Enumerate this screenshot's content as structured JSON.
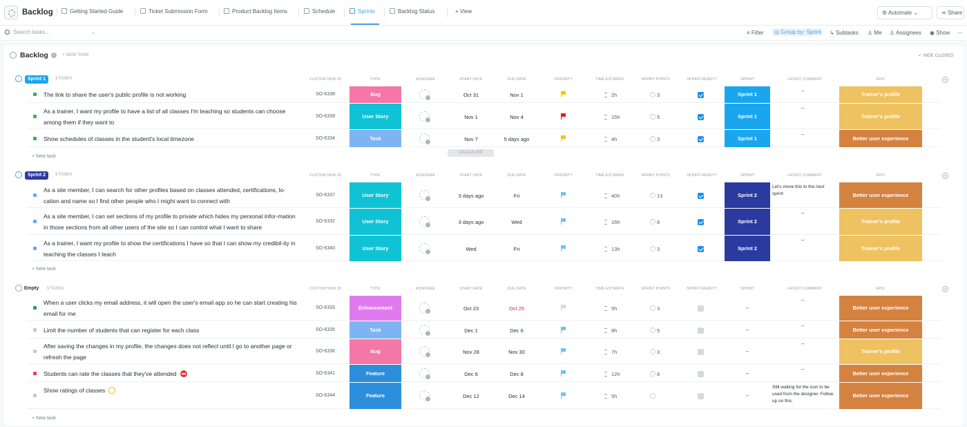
{
  "app": {
    "title": "Backlog"
  },
  "tabs": [
    {
      "label": "Getting Started Guide"
    },
    {
      "label": "Ticket Submission Form"
    },
    {
      "label": "Product Backlog Items"
    },
    {
      "label": "Schedule"
    },
    {
      "label": "Sprints",
      "active": true
    },
    {
      "label": "Backlog Status"
    }
  ],
  "view_label": "+ View",
  "topbar": {
    "automate_label": "Automate",
    "share_label": "Share"
  },
  "toolbar": {
    "search_placeholder": "Search tasks...",
    "filter_label": "Filter",
    "groupby_label": "Group by: Sprint",
    "subtasks_label": "Subtasks",
    "me_label": "Me",
    "assignees_label": "Assignees",
    "show_label": "Show",
    "more_label": "⋯"
  },
  "list": {
    "title": "Backlog",
    "new_task_label": "+ NEW TASK",
    "hide_closed_label": "HIDE CLOSED"
  },
  "columns": {
    "custom_task_id": "CUSTOM TASK ID",
    "type": "TYPE",
    "assignee": "ASSIGNEE",
    "start_date": "START DATE",
    "due_date": "DUE DATE",
    "priority": "PRIORITY",
    "time_estimate": "TIME ESTIMATE",
    "sprint_points": "SPRINT POINTS",
    "sprint_ready": "SPRINT-READY?",
    "sprint": "SPRINT",
    "latest_comment": "LATEST COMMENT",
    "epic": "EPIC"
  },
  "calculate_label": "CALCULATE",
  "new_task_row_label": "+ New task",
  "colors": {
    "bug": "#f477a8",
    "user_story": "#0fc3d5",
    "task": "#7fb4f2",
    "enhancement": "#df7bef",
    "feature": "#2d8fdc",
    "sprint1": "#1aa6ee",
    "sprint2": "#2b3a9f",
    "epic_trainer": "#eec260",
    "epic_better": "#d4823f",
    "flag_yellow": "#f5c400",
    "flag_red": "#e01e1e",
    "flag_blue": "#6fc3ee",
    "flag_grey": "#d5d8dc"
  },
  "groups": [
    {
      "name": "Sprint 1",
      "count_label": "3 TASKS",
      "color": "#1aa6ee",
      "tasks": [
        {
          "name": "The link to share the user's public profile is not working",
          "id": "SO-6338",
          "type": "Bug",
          "start": "Oct 31",
          "due": "Nov 1",
          "priority": "yellow",
          "time": "2h",
          "points": "3",
          "ready": true,
          "sprint": "Sprint 1",
          "comment": "–",
          "epic": "Trainer's profile",
          "status_color": "#2fb84a"
        },
        {
          "name": "As a trainer, I want my profile to have a list of all classes I'm teaching so students can choose among them if they want to",
          "id": "SO-6339",
          "type": "User Story",
          "start": "Nov 1",
          "due": "Nov 4",
          "priority": "red",
          "time": "15h",
          "points": "5",
          "ready": true,
          "sprint": "Sprint 1",
          "comment": "–",
          "epic": "Trainer's profile",
          "status_color": "#2fb84a"
        },
        {
          "name": "Show schedules of classes in the student's local timezone",
          "id": "SO-6334",
          "type": "Task",
          "start": "Nov 7",
          "due": "5 days ago",
          "priority": "yellow",
          "time": "4h",
          "points": "3",
          "ready": true,
          "sprint": "Sprint 1",
          "comment": "–",
          "epic": "Better user experience",
          "status_color": "#2fb84a"
        }
      ]
    },
    {
      "name": "Sprint 2",
      "count_label": "3 TASKS",
      "color": "#2b3a9f",
      "tasks": [
        {
          "name": "As a site member, I can search for other profiles based on classes attended, certifications, lo-cation and name so I find other people who I might want to connect with",
          "id": "SO-6337",
          "type": "User Story",
          "start": "3 days ago",
          "due": "Fri",
          "priority": "blue",
          "time": "40h",
          "points": "13",
          "ready": true,
          "sprint": "Sprint 2",
          "comment": "Let's move this to the next sprint",
          "epic": "Better user experience",
          "status_color": "#6fa7ef"
        },
        {
          "name": "As a site member, I can set sections of my profile to private which hides my personal infor-mation in those sections from all other users of the site so I can control what I want to share",
          "id": "SO-6332",
          "type": "User Story",
          "start": "3 days ago",
          "due": "Wed",
          "priority": "blue",
          "time": "16h",
          "points": "8",
          "ready": true,
          "sprint": "Sprint 2",
          "comment": "–",
          "epic": "Trainer's profile",
          "status_color": "#6fa7ef"
        },
        {
          "name": "As a trainer, I want my profile to show the certifications I have so that I can show my credibil-ity in teaching the classes I teach",
          "id": "SO-6340",
          "type": "User Story",
          "start": "Wed",
          "due": "Fri",
          "priority": "blue",
          "time": "13h",
          "points": "3",
          "ready": true,
          "sprint": "Sprint 2",
          "comment": "–",
          "epic": "Trainer's profile",
          "status_color": "#6fa7ef"
        }
      ]
    },
    {
      "name": "Empty",
      "count_label": "5 TASKS",
      "color": "",
      "tasks": [
        {
          "name": "When a user clicks my email address, it will open the user's email app so he can start creating his email for me",
          "id": "SO-6333",
          "type": "Enhancement",
          "start": "Oct 23",
          "due": "Oct 25",
          "due_overdue": true,
          "priority": "grey",
          "time": "5h",
          "points": "3",
          "ready": false,
          "sprint": "–",
          "comment": "–",
          "epic": "Better user experience",
          "status_color": "#1f9d7a"
        },
        {
          "name": "Limit the number of students that can register for each class",
          "id": "SO-6335",
          "type": "Task",
          "start": "Dec 1",
          "due": "Dec 6",
          "priority": "blue",
          "time": "8h",
          "points": "5",
          "ready": false,
          "sprint": "–",
          "comment": "–",
          "epic": "Better user experience",
          "status_color": "#c5c9ce"
        },
        {
          "name": "After saving the changes in my profile, the changes does not reflect until I go to another page or refresh the page",
          "id": "SO-6336",
          "type": "Bug",
          "start": "Nov 28",
          "due": "Nov 30",
          "priority": "blue",
          "time": "7h",
          "points": "3",
          "ready": false,
          "sprint": "–",
          "comment": "–",
          "epic": "Trainer's profile",
          "status_color": "#c5c9ce"
        },
        {
          "name": "Students can rate the classes that they've attended",
          "id": "SO-6341",
          "type": "Feature",
          "start": "Dec 6",
          "due": "Dec 8",
          "priority": "blue",
          "time": "12h",
          "points": "8",
          "ready": false,
          "sprint": "–",
          "comment": "–",
          "epic": "Better user experience",
          "status_color": "#f03e5c"
        },
        {
          "name": "Show ratings of classes",
          "id": "SO-6344",
          "type": "Feature",
          "start": "Dec 12",
          "due": "Dec 14",
          "priority": "blue",
          "time": "5h",
          "points": "",
          "ready": false,
          "sprint": "–",
          "comment": "Still waiting for the icon to be used from the designer. Follow up on this.",
          "epic": "Better user experience",
          "status_color": "#c5c9ce"
        }
      ]
    }
  ]
}
